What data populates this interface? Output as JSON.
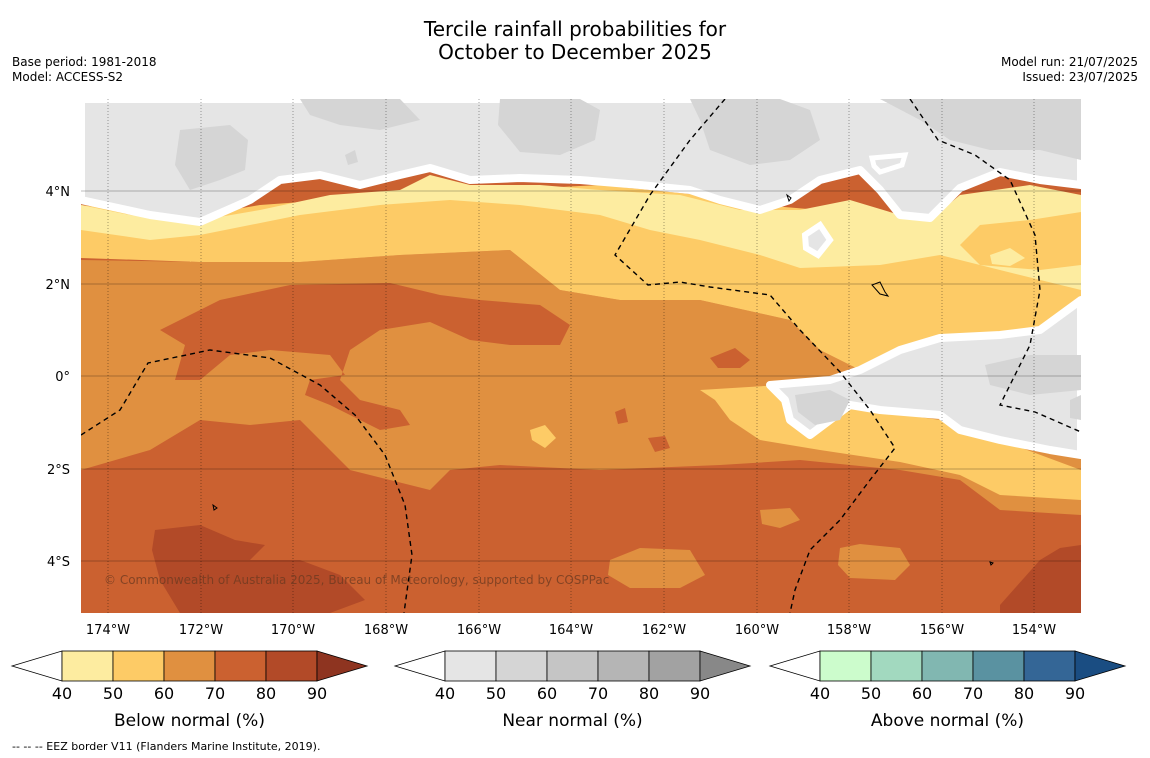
{
  "title": {
    "line1": "Tercile rainfall probabilities for",
    "line2": "October to December 2025"
  },
  "meta_left": {
    "base_period": "Base period: 1981-2018",
    "model": "Model: ACCESS-S2"
  },
  "meta_right": {
    "model_run": "Model run: 21/07/2025",
    "issued": "Issued: 23/07/2025"
  },
  "map": {
    "lon_labels": [
      "174°W",
      "172°W",
      "170°W",
      "168°W",
      "166°W",
      "164°W",
      "162°W",
      "160°W",
      "158°W",
      "156°W",
      "154°W"
    ],
    "lat_labels": [
      "4°N",
      "2°N",
      "0°",
      "2°S",
      "4°S"
    ],
    "copyright": "© Commonwealth of Australia 2025, Bureau of Meteorology, supported by COSPPac"
  },
  "colorbars": [
    {
      "title": "Below normal (%)",
      "ticks": [
        "40",
        "50",
        "60",
        "70",
        "80",
        "90"
      ],
      "colors": [
        "#ffffff",
        "#fdeca0",
        "#fdcb66",
        "#e09040",
        "#cb6130",
        "#b24a28",
        "#8e3420"
      ]
    },
    {
      "title": "Near normal (%)",
      "ticks": [
        "40",
        "50",
        "60",
        "70",
        "80",
        "90"
      ],
      "colors": [
        "#ffffff",
        "#e5e5e5",
        "#d5d5d5",
        "#c5c5c5",
        "#b5b5b5",
        "#a2a2a2",
        "#888888"
      ]
    },
    {
      "title": "Above normal (%)",
      "ticks": [
        "40",
        "50",
        "60",
        "70",
        "80",
        "90"
      ],
      "colors": [
        "#ffffff",
        "#ccfccc",
        "#a2d9bf",
        "#81b7b1",
        "#5a92a1",
        "#346696",
        "#1a4d82"
      ]
    }
  ],
  "footer": "--  --  -- EEZ border V11 (Flanders Marine Institute, 2019)."
}
